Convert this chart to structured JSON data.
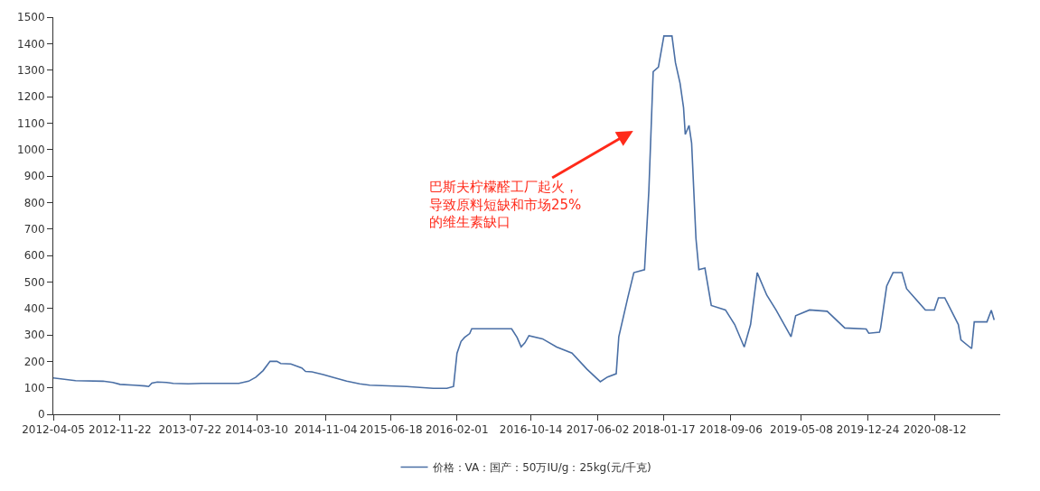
{
  "chart_data": {
    "type": "line",
    "x": [
      "2012-04-05",
      "2012-06-21",
      "2012-09-24",
      "2012-10-28",
      "2012-11-22",
      "2013-01-09",
      "2013-02-17",
      "2013-03-01",
      "2013-03-12",
      "2013-03-31",
      "2013-05-02",
      "2013-05-25",
      "2013-07-16",
      "2013-08-31",
      "2014-01-07",
      "2014-02-10",
      "2014-03-07",
      "2014-04-01",
      "2014-04-25",
      "2014-05-19",
      "2014-06-01",
      "2014-07-06",
      "2014-08-13",
      "2014-08-26",
      "2014-09-17",
      "2014-10-26",
      "2014-11-28",
      "2015-01-15",
      "2015-03-01",
      "2015-04-05",
      "2015-08-11",
      "2015-11-11",
      "2015-12-28",
      "2016-01-20",
      "2016-02-01",
      "2016-02-15",
      "2016-02-27",
      "2016-03-16",
      "2016-03-23",
      "2016-08-08",
      "2016-08-27",
      "2016-09-10",
      "2016-09-23",
      "2016-10-07",
      "2016-11-23",
      "2017-01-11",
      "2017-03-05",
      "2017-04-26",
      "2017-06-11",
      "2017-07-06",
      "2017-08-05",
      "2017-08-14",
      "2017-09-14",
      "2017-10-05",
      "2017-11-11",
      "2017-11-26",
      "2017-12-11",
      "2017-12-29",
      "2018-01-17",
      "2018-02-14",
      "2018-02-26",
      "2018-03-14",
      "2018-03-26",
      "2018-04-01",
      "2018-04-14",
      "2018-04-23",
      "2018-05-08",
      "2018-05-18",
      "2018-06-08",
      "2018-06-30",
      "2018-08-18",
      "2018-09-19",
      "2018-10-22",
      "2018-11-13",
      "2018-12-06",
      "2019-01-08",
      "2019-02-09",
      "2019-04-02",
      "2019-04-18",
      "2019-06-05",
      "2019-08-05",
      "2019-10-05",
      "2019-12-18",
      "2019-12-27",
      "2020-02-02",
      "2020-02-06",
      "2020-02-27",
      "2020-03-20",
      "2020-04-20",
      "2020-05-06",
      "2020-07-10",
      "2020-08-10",
      "2020-08-24",
      "2020-09-15",
      "2020-11-01",
      "2020-11-10",
      "2020-12-17",
      "2020-12-26",
      "2021-02-08",
      "2021-02-23",
      "2021-03-05"
    ],
    "series": [
      {
        "name": "价格：VA：国产：50万IU/g：25kg(元/千克)",
        "color": "#4a6fa5",
        "values": [
          137,
          127,
          125,
          120,
          113,
          110,
          107,
          105,
          118,
          122,
          120,
          117,
          115,
          117,
          117,
          125,
          140,
          165,
          200,
          200,
          192,
          190,
          175,
          162,
          160,
          150,
          140,
          125,
          115,
          110,
          105,
          98,
          98,
          105,
          230,
          275,
          290,
          305,
          323,
          323,
          290,
          255,
          270,
          297,
          285,
          254,
          231,
          170,
          123,
          141,
          153,
          293,
          440,
          535,
          546,
          845,
          1294,
          1311,
          1429,
          1429,
          1328,
          1250,
          1159,
          1057,
          1091,
          1024,
          664,
          546,
          552,
          411,
          394,
          339,
          254,
          339,
          535,
          450,
          394,
          293,
          372,
          394,
          389,
          326,
          322,
          306,
          310,
          326,
          484,
          535,
          535,
          474,
          394,
          394,
          440,
          440,
          339,
          281,
          248,
          349,
          349,
          393,
          356
        ]
      }
    ],
    "xlim": [
      "2012-04-05",
      "2021-03-26"
    ],
    "xticks": [
      "2012-04-05",
      "2012-11-22",
      "2013-07-22",
      "2014-03-10",
      "2014-11-04",
      "2015-06-18",
      "2016-02-01",
      "2016-10-14",
      "2017-06-02",
      "2018-01-17",
      "2018-09-06",
      "2019-05-08",
      "2019-12-24",
      "2020-08-12"
    ],
    "ylim": [
      0,
      1500
    ],
    "yticks": [
      0,
      100,
      200,
      300,
      400,
      500,
      600,
      700,
      800,
      900,
      1000,
      1100,
      1200,
      1300,
      1400,
      1500
    ],
    "annotations": [
      "巴斯夫柠檬醛工厂起火，导致原料短缺和市场25%的维生素缺口"
    ],
    "legend": "bottom",
    "marker": "none",
    "line_style": "solid"
  }
}
